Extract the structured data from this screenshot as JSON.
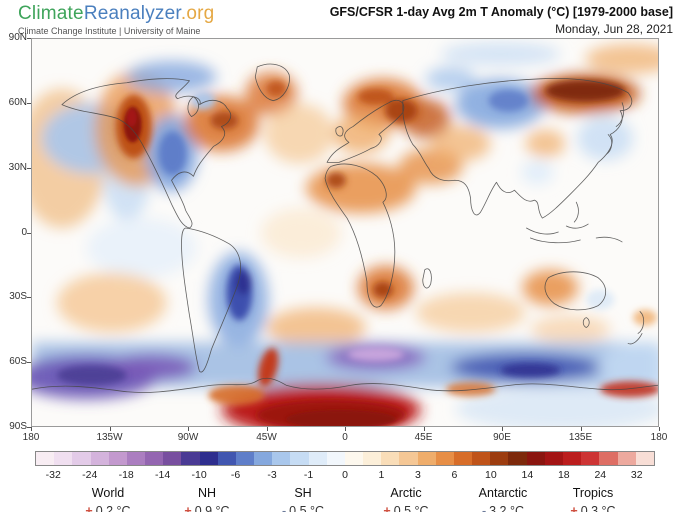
{
  "header": {
    "logo": {
      "part1": "Climate",
      "part2": "Reanalyzer",
      "part3": ".org",
      "color1": "#3fa45b",
      "color2": "#4a7fbe",
      "color3": "#e5a844",
      "subtitle": "Climate Change Institute | University of Maine"
    },
    "title": "GFS/CFSR 1-day Avg 2m T Anomaly (°C) [1979-2000 base]",
    "date": "Monday, Jun 28, 2021"
  },
  "map": {
    "lat_labels": [
      "90N",
      "60N",
      "30N",
      "0",
      "30S",
      "60S",
      "90S"
    ],
    "lon_labels": [
      "180",
      "135W",
      "90W",
      "45W",
      "0",
      "45E",
      "90E",
      "135E",
      "180"
    ]
  },
  "colorbar": {
    "ticks": [
      "-32",
      "-24",
      "-18",
      "-14",
      "-10",
      "-6",
      "-3",
      "-1",
      "0",
      "1",
      "3",
      "6",
      "10",
      "14",
      "18",
      "24",
      "32"
    ],
    "colors": [
      "#f8edf3",
      "#f0dff0",
      "#e3cbe8",
      "#d4b3dc",
      "#c399ce",
      "#ab7ec0",
      "#9466b1",
      "#784f9f",
      "#4a3a94",
      "#2e2e8e",
      "#4156b0",
      "#5f7ec9",
      "#85a8de",
      "#a9c7ec",
      "#c6dcf4",
      "#dfecf9",
      "#f2f7fc",
      "#fdf8ee",
      "#fcefd9",
      "#f9ddb8",
      "#f5c795",
      "#efad6b",
      "#e78e46",
      "#d76d29",
      "#bf5319",
      "#9c3c0f",
      "#7d290b",
      "#8a150f",
      "#a31414",
      "#bb1d1d",
      "#cd3434",
      "#de6e64",
      "#eda99e",
      "#f8ded6"
    ]
  },
  "stats": {
    "plus_color": "#cf4f3f",
    "minus_color": "#6b7a99",
    "items": [
      {
        "label": "World",
        "sign": "+",
        "value": "0.2 °C"
      },
      {
        "label": "NH",
        "sign": "+",
        "value": "0.9 °C"
      },
      {
        "label": "SH",
        "sign": "-",
        "value": "0.5 °C"
      },
      {
        "label": "Arctic",
        "sign": "+",
        "value": "0.5 °C"
      },
      {
        "label": "Antarctic",
        "sign": "-",
        "value": "3.2 °C"
      },
      {
        "label": "Tropics",
        "sign": "+",
        "value": "0.3 °C"
      }
    ]
  },
  "chart_data": {
    "type": "heatmap",
    "title": "GFS/CFSR 1-day Avg 2m T Anomaly (°C) [1979-2000 base]",
    "subtitle": "Monday, Jun 28, 2021",
    "projection": "equirectangular world map, 90N-90S / 180W-180E",
    "units": "°C anomaly vs 1979-2000 base",
    "x_axis": {
      "label": "longitude",
      "ticks": [
        "180",
        "135W",
        "90W",
        "45W",
        "0",
        "45E",
        "90E",
        "135E",
        "180"
      ]
    },
    "y_axis": {
      "label": "latitude",
      "ticks": [
        "90N",
        "60N",
        "30N",
        "0",
        "30S",
        "60S",
        "90S"
      ]
    },
    "colorbar_ticks": [
      -32,
      -24,
      -18,
      -14,
      -10,
      -6,
      -3,
      -1,
      0,
      1,
      3,
      6,
      10,
      14,
      18,
      24,
      32
    ],
    "legend_position": "bottom",
    "regional_means": [
      {
        "region": "World",
        "anomaly_c": 0.2
      },
      {
        "region": "NH",
        "anomaly_c": 0.9
      },
      {
        "region": "SH",
        "anomaly_c": -0.5
      },
      {
        "region": "Arctic",
        "anomaly_c": 0.5
      },
      {
        "region": "Antarctic",
        "anomaly_c": -3.2
      },
      {
        "region": "Tropics",
        "anomaly_c": 0.3
      }
    ],
    "notable_features": [
      "extreme warm anomaly (+14 to +18) over Pacific Northwest / British Columbia heat dome",
      "cool anomaly (-6 to -10) over central United States plains",
      "strong warm anomalies over eastern Canada, Scandinavia, eastern Europe and northeast Siberia",
      "cool anomaly over central Siberia",
      "warm anomalies over North Africa, Middle East, southern Africa and western Australia",
      "cool anomaly (-10) over northern Argentina / Paraguay",
      "cold circumpolar band with purple (-18 to -24) pockets along the Southern Ocean near 60S",
      "very strong warm anomaly (+14 to +18) over Antarctic coast between 60W and 45E"
    ]
  }
}
